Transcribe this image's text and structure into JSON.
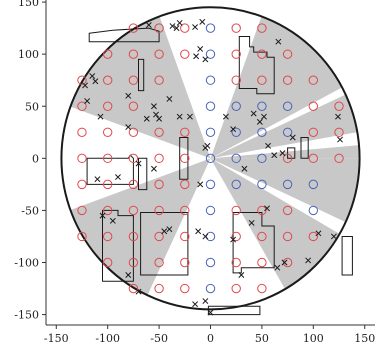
{
  "chart_data": {
    "type": "scatter",
    "title": "",
    "xlabel": "",
    "ylabel": "",
    "xlim": [
      -160,
      160
    ],
    "ylim": [
      -160,
      152
    ],
    "xticks": [
      -150,
      -100,
      -50,
      0,
      50,
      100,
      150
    ],
    "yticks": [
      -150,
      -100,
      -50,
      0,
      50,
      100,
      150
    ],
    "grid": false,
    "legend": "none",
    "colors": {
      "red_circle": "#e0484d",
      "blue_circle": "#4a63b8",
      "cross": "#1a1a1a",
      "shade": "#c8c8c8",
      "outline": "#1a1a1a"
    },
    "boundary_circle": {
      "center": [
        0,
        0
      ],
      "radius": 145
    },
    "shaded_sectors": [
      {
        "from_deg": 28,
        "to_deg": 70
      },
      {
        "from_deg": 110,
        "to_deg": 160
      },
      {
        "from_deg": 200,
        "to_deg": 245
      },
      {
        "from_deg": 300,
        "to_deg": 330
      },
      {
        "from_deg": 335,
        "to_deg": 360
      },
      {
        "from_deg": 0,
        "to_deg": 5
      },
      {
        "from_deg": 10,
        "to_deg": 25
      }
    ],
    "outlined_regions": [
      {
        "points": [
          [
            28,
            117
          ],
          [
            38,
            117
          ],
          [
            38,
            107
          ],
          [
            42,
            107
          ],
          [
            42,
            102
          ],
          [
            55,
            102
          ],
          [
            55,
            97
          ],
          [
            62,
            97
          ],
          [
            62,
            62
          ],
          [
            45,
            62
          ],
          [
            45,
            67
          ],
          [
            28,
            67
          ]
        ]
      },
      {
        "points": [
          [
            -118,
            120
          ],
          [
            -95,
            123
          ],
          [
            -60,
            125
          ],
          [
            -50,
            122
          ],
          [
            -50,
            112
          ],
          [
            -118,
            112
          ]
        ]
      },
      {
        "points": [
          [
            -70,
            95
          ],
          [
            -65,
            95
          ],
          [
            -65,
            65
          ],
          [
            -70,
            65
          ]
        ]
      },
      {
        "points": [
          [
            -120,
            0
          ],
          [
            -80,
            0
          ],
          [
            -78,
            3
          ],
          [
            -75,
            0
          ],
          [
            -75,
            -25
          ],
          [
            -120,
            -25
          ]
        ]
      },
      {
        "points": [
          [
            -70,
            0
          ],
          [
            -62,
            0
          ],
          [
            -62,
            -30
          ],
          [
            -70,
            -30
          ]
        ]
      },
      {
        "points": [
          [
            -30,
            20
          ],
          [
            -22,
            20
          ],
          [
            -22,
            -20
          ],
          [
            -30,
            -20
          ]
        ]
      },
      {
        "points": [
          [
            88,
            20
          ],
          [
            95,
            20
          ],
          [
            95,
            0
          ],
          [
            88,
            0
          ]
        ]
      },
      {
        "points": [
          [
            75,
            10
          ],
          [
            82,
            10
          ],
          [
            82,
            0
          ],
          [
            75,
            0
          ]
        ]
      },
      {
        "points": [
          [
            -105,
            -50
          ],
          [
            -90,
            -50
          ],
          [
            -90,
            -55
          ],
          [
            -75,
            -55
          ],
          [
            -75,
            -118
          ],
          [
            -105,
            -118
          ]
        ]
      },
      {
        "points": [
          [
            -68,
            -52
          ],
          [
            -22,
            -52
          ],
          [
            -22,
            -112
          ],
          [
            -68,
            -112
          ]
        ]
      },
      {
        "points": [
          [
            -2,
            -142
          ],
          [
            48,
            -142
          ],
          [
            48,
            -150
          ],
          [
            -2,
            -150
          ]
        ]
      },
      {
        "points": [
          [
            22,
            -52
          ],
          [
            50,
            -52
          ],
          [
            50,
            -65
          ],
          [
            62,
            -65
          ],
          [
            62,
            -105
          ],
          [
            30,
            -105
          ],
          [
            30,
            -110
          ],
          [
            22,
            -110
          ]
        ]
      },
      {
        "points": [
          [
            128,
            -75
          ],
          [
            138,
            -75
          ],
          [
            138,
            -112
          ],
          [
            128,
            -112
          ]
        ]
      }
    ],
    "red_circles": [
      [
        -75,
        125
      ],
      [
        -50,
        125
      ],
      [
        -25,
        125
      ],
      [
        25,
        125
      ],
      [
        50,
        125
      ],
      [
        -100,
        100
      ],
      [
        -75,
        100
      ],
      [
        -50,
        100
      ],
      [
        -25,
        100
      ],
      [
        25,
        100
      ],
      [
        50,
        100
      ],
      [
        75,
        100
      ],
      [
        -125,
        75
      ],
      [
        -100,
        75
      ],
      [
        -75,
        75
      ],
      [
        -50,
        75
      ],
      [
        25,
        75
      ],
      [
        50,
        75
      ],
      [
        75,
        75
      ],
      [
        100,
        75
      ],
      [
        -125,
        50
      ],
      [
        -100,
        50
      ],
      [
        -75,
        50
      ],
      [
        100,
        50
      ],
      [
        125,
        50
      ],
      [
        -125,
        25
      ],
      [
        -100,
        25
      ],
      [
        -75,
        25
      ],
      [
        -50,
        25
      ],
      [
        -25,
        25
      ],
      [
        100,
        25
      ],
      [
        125,
        25
      ],
      [
        -125,
        0
      ],
      [
        -100,
        0
      ],
      [
        -75,
        0
      ],
      [
        -50,
        0
      ],
      [
        -25,
        0
      ],
      [
        75,
        0
      ],
      [
        100,
        0
      ],
      [
        125,
        0
      ],
      [
        -125,
        -25
      ],
      [
        -100,
        -25
      ],
      [
        -75,
        -25
      ],
      [
        -50,
        -25
      ],
      [
        -25,
        -25
      ],
      [
        -125,
        -50
      ],
      [
        -100,
        -50
      ],
      [
        -75,
        -50
      ],
      [
        -50,
        -50
      ],
      [
        -25,
        -50
      ],
      [
        25,
        -50
      ],
      [
        50,
        -50
      ],
      [
        75,
        -50
      ],
      [
        -125,
        -75
      ],
      [
        -100,
        -75
      ],
      [
        -75,
        -75
      ],
      [
        -50,
        -75
      ],
      [
        -25,
        -75
      ],
      [
        25,
        -75
      ],
      [
        50,
        -75
      ],
      [
        75,
        -75
      ],
      [
        100,
        -75
      ],
      [
        -100,
        -100
      ],
      [
        -75,
        -100
      ],
      [
        -50,
        -100
      ],
      [
        -25,
        -100
      ],
      [
        25,
        -100
      ],
      [
        50,
        -100
      ],
      [
        75,
        -100
      ],
      [
        -75,
        -125
      ],
      [
        -50,
        -125
      ],
      [
        -25,
        -125
      ],
      [
        25,
        -125
      ],
      [
        50,
        -125
      ]
    ],
    "blue_circles": [
      [
        0,
        125
      ],
      [
        0,
        100
      ],
      [
        0,
        75
      ],
      [
        0,
        50
      ],
      [
        25,
        50
      ],
      [
        50,
        50
      ],
      [
        75,
        50
      ],
      [
        0,
        25
      ],
      [
        25,
        25
      ],
      [
        50,
        25
      ],
      [
        75,
        25
      ],
      [
        0,
        0
      ],
      [
        25,
        0
      ],
      [
        50,
        0
      ],
      [
        0,
        -25
      ],
      [
        25,
        -25
      ],
      [
        50,
        -25
      ],
      [
        75,
        -25
      ],
      [
        100,
        -25
      ],
      [
        0,
        -50
      ],
      [
        100,
        -50
      ],
      [
        0,
        -75
      ],
      [
        0,
        -100
      ],
      [
        0,
        -125
      ]
    ],
    "crosses": [
      [
        -60,
        128
      ],
      [
        -37,
        127
      ],
      [
        -30,
        130
      ],
      [
        -33,
        125
      ],
      [
        -8,
        131
      ],
      [
        -15,
        126
      ],
      [
        66,
        112
      ],
      [
        -10,
        105
      ],
      [
        -14,
        98
      ],
      [
        -5,
        95
      ],
      [
        -115,
        79
      ],
      [
        -112,
        74
      ],
      [
        -122,
        70
      ],
      [
        -80,
        60
      ],
      [
        -40,
        57
      ],
      [
        -55,
        50
      ],
      [
        -53,
        42
      ],
      [
        -30,
        40
      ],
      [
        -120,
        55
      ],
      [
        -107,
        40
      ],
      [
        -80,
        30
      ],
      [
        -62,
        38
      ],
      [
        -50,
        38
      ],
      [
        -20,
        40
      ],
      [
        15,
        40
      ],
      [
        42,
        43
      ],
      [
        22,
        28
      ],
      [
        48,
        35
      ],
      [
        52,
        40
      ],
      [
        -5,
        10
      ],
      [
        -3,
        12
      ],
      [
        56,
        12
      ],
      [
        80,
        20
      ],
      [
        62,
        3
      ],
      [
        70,
        5
      ],
      [
        124,
        40
      ],
      [
        126,
        18
      ],
      [
        -110,
        -20
      ],
      [
        -90,
        -18
      ],
      [
        -70,
        -5
      ],
      [
        -55,
        -10
      ],
      [
        -10,
        -25
      ],
      [
        33,
        -10
      ],
      [
        -105,
        -55
      ],
      [
        -95,
        -60
      ],
      [
        -45,
        -70
      ],
      [
        -40,
        -68
      ],
      [
        -12,
        -70
      ],
      [
        -5,
        -75
      ],
      [
        55,
        -48
      ],
      [
        40,
        -62
      ],
      [
        22,
        -78
      ],
      [
        30,
        -112
      ],
      [
        -80,
        -112
      ],
      [
        -70,
        -128
      ],
      [
        -5,
        -137
      ],
      [
        -15,
        -140
      ],
      [
        0,
        -148
      ],
      [
        65,
        -105
      ],
      [
        72,
        -100
      ],
      [
        95,
        -98
      ],
      [
        120,
        -75
      ],
      [
        105,
        -72
      ]
    ]
  }
}
